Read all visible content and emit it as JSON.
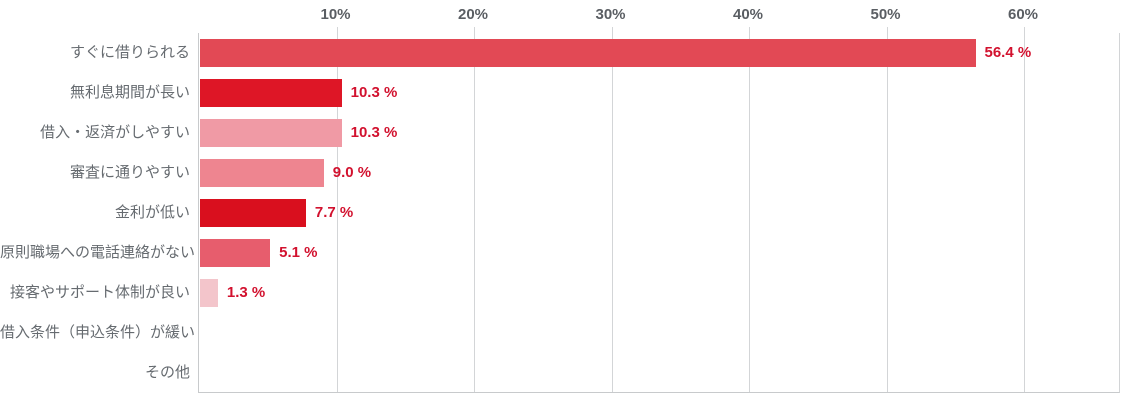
{
  "chart_data": {
    "type": "bar",
    "orientation": "horizontal",
    "title": "",
    "xlabel": "",
    "ylabel": "",
    "categories": [
      "すぐに借りられる",
      "無利息期間が長い",
      "借入・返済がしやすい",
      "審査に通りやすい",
      "金利が低い",
      "原則職場への電話連絡がない",
      "接客やサポート体制が良い",
      "借入条件（申込条件）が緩い",
      "その他"
    ],
    "values": [
      56.4,
      10.3,
      10.3,
      9.0,
      7.7,
      5.1,
      1.3,
      0,
      0
    ],
    "value_labels": [
      "56.4 %",
      "10.3 %",
      "10.3 %",
      "9.0 %",
      "7.7 %",
      "5.1 %",
      "1.3 %",
      "",
      ""
    ],
    "bar_colors": [
      "#e24955",
      "#de1626",
      "#f09aa5",
      "#ee8590",
      "#d90f1e",
      "#e75d6d",
      "#f3c5cb",
      null,
      null
    ],
    "x_ticks": [
      "10%",
      "20%",
      "30%",
      "40%",
      "50%",
      "60%"
    ],
    "x_tick_values": [
      10,
      20,
      30,
      40,
      50,
      60
    ],
    "xlim": [
      0,
      67
    ],
    "grid": true,
    "legend": false,
    "axis_position": "top",
    "colors": {
      "value_label": "#d2112e",
      "axis_label": "#5a5e63",
      "category_label": "#666b70",
      "gridline": "#d3d5d7",
      "axis_line": "#c8cacc"
    }
  }
}
